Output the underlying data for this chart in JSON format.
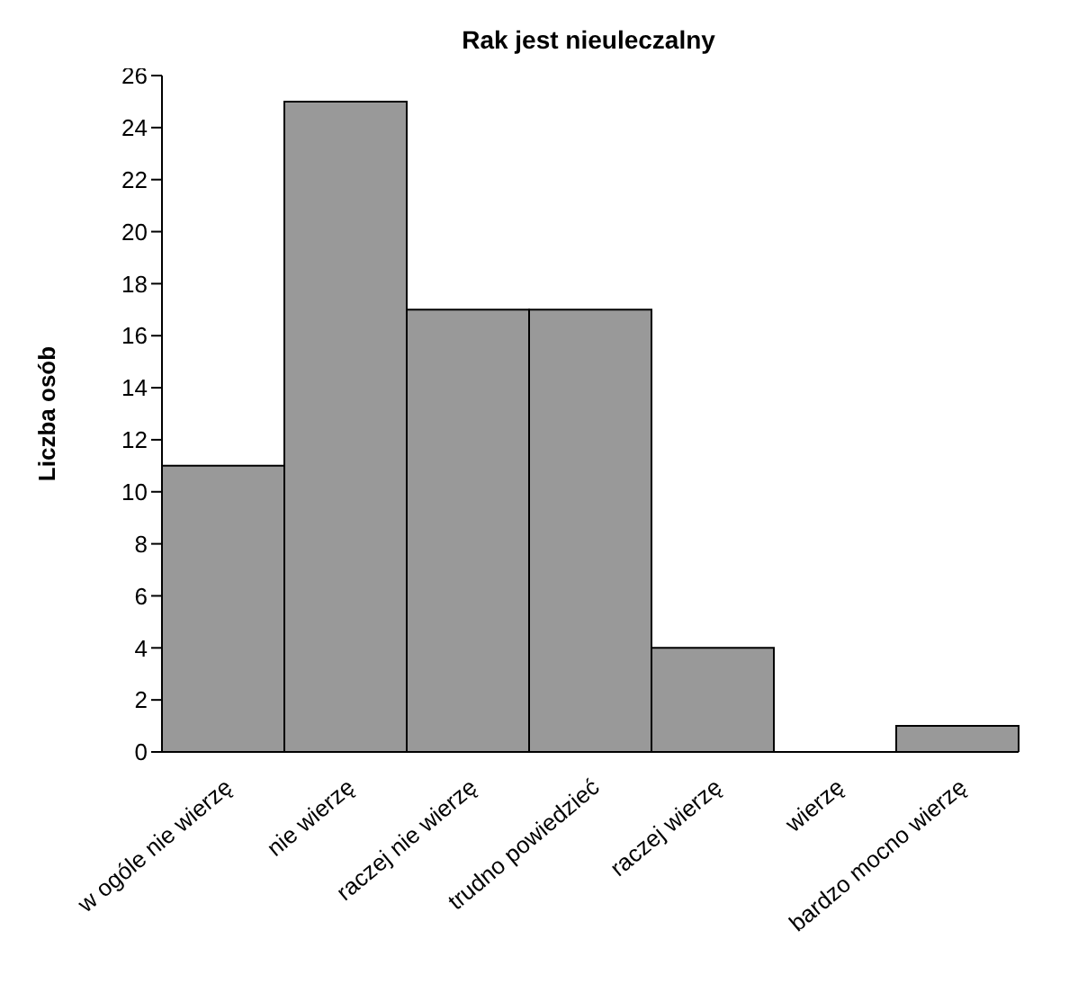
{
  "chart_data": {
    "type": "bar",
    "title": "Rak jest nieuleczalny",
    "ylabel": "Liczba osób",
    "categories": [
      "w ogóle nie wierzę",
      "nie wierzę",
      "raczej nie wierzę",
      "trudno powiedzieć",
      "raczej wierzę",
      "wierzę",
      "bardzo mocno wierzę"
    ],
    "values": [
      11,
      25,
      17,
      17,
      4,
      0,
      1
    ],
    "color": "#999999",
    "ylim": [
      0,
      26
    ],
    "yticks": [
      0,
      2,
      4,
      6,
      8,
      10,
      12,
      14,
      16,
      18,
      20,
      22,
      24,
      26
    ],
    "grid": false,
    "legend": false
  }
}
